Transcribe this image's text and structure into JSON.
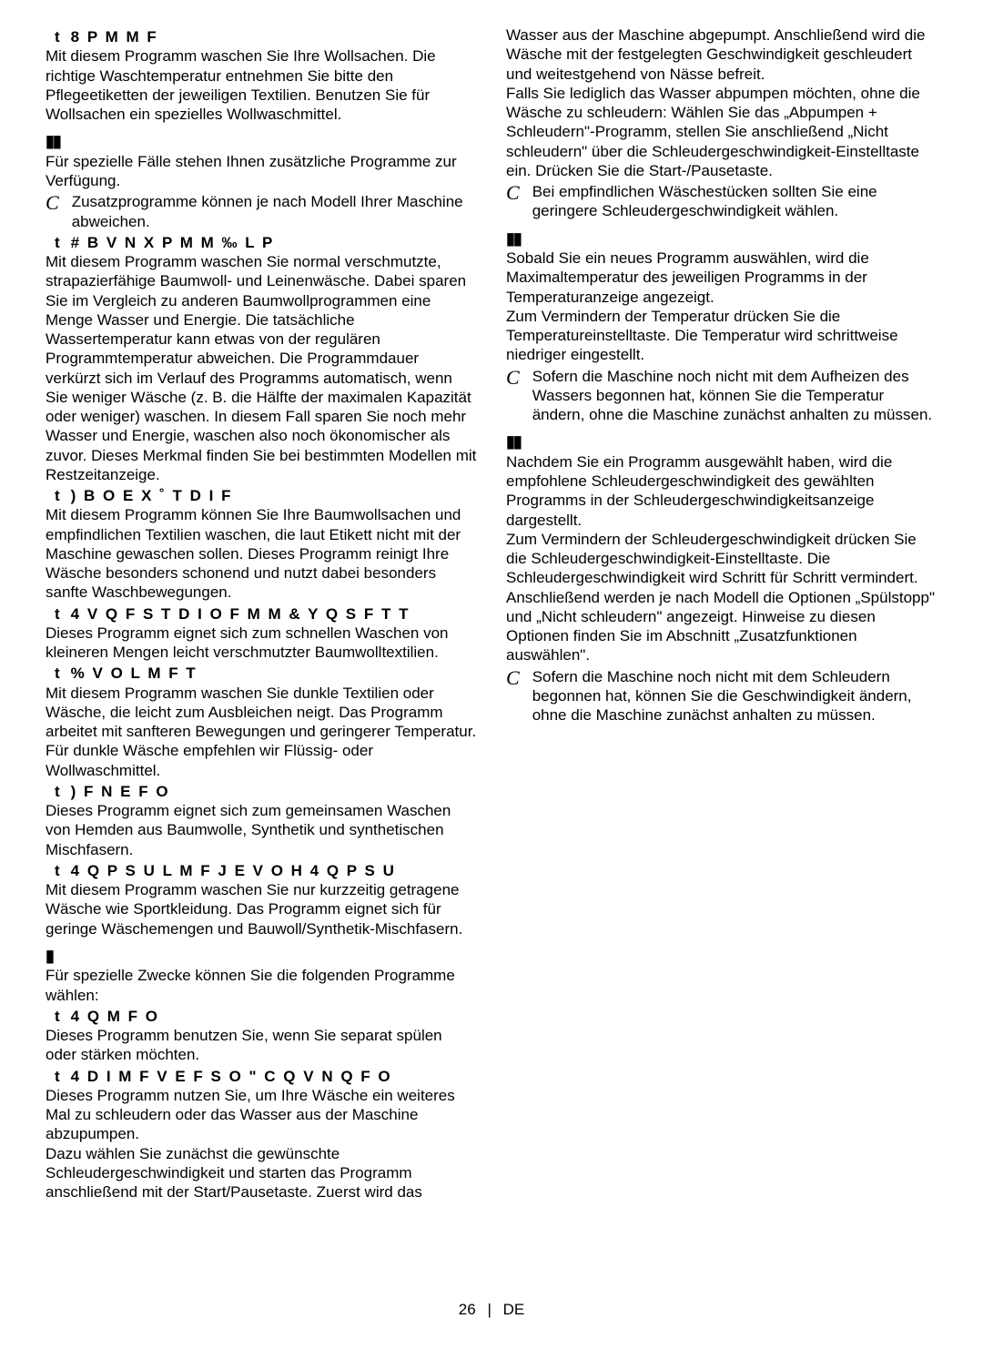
{
  "left": {
    "prog_wolle": {
      "bullet": "t",
      "header": "8 P M M F",
      "body": "Mit diesem Programm waschen Sie Ihre Wollsachen. Die richtige Waschtemperatur entnehmen Sie bitte den Pflegeetiketten der jeweiligen Textilien. Benutzen Sie für Wollsachen ein spezielles Wollwaschmittel."
    },
    "section1": {
      "marker": "▮▮",
      "intro": "Für spezielle Fälle stehen Ihnen zusätzliche Programme zur Verfügung.",
      "note": "Zusatzprogramme können je nach Modell Ihrer Maschine abweichen."
    },
    "prog_baumwoll": {
      "bullet": "t",
      "header": "# B V N X P M M  ‰ L P",
      "body": "Mit diesem Programm waschen Sie normal verschmutzte, strapazierfähige Baumwoll- und Leinenwäsche. Dabei sparen Sie im Vergleich zu anderen Baumwollprogrammen eine Menge Wasser und Energie. Die tatsächliche Wassertemperatur kann etwas von der regulären Programmtemperatur abweichen. Die Programmdauer verkürzt sich im Verlauf des Programms automatisch, wenn Sie weniger Wäsche (z. B. die Hälfte der maximalen Kapazität oder weniger) waschen. In diesem Fall sparen Sie noch mehr Wasser und Energie, waschen also noch ökonomischer als zuvor. Dieses Merkmal finden Sie bei bestimmten Modellen mit Restzeitanzeige."
    },
    "prog_hand": {
      "bullet": "t",
      "header": ") B O E X ˚ T D I F",
      "body": "Mit diesem Programm können Sie Ihre Baumwollsachen und empfindlichen Textilien waschen, die laut Etikett nicht mit der Maschine gewaschen sollen. Dieses Programm reinigt Ihre Wäsche besonders schonend und nutzt dabei besonders sanfte Waschbewegungen."
    },
    "prog_schnell": {
      "bullet": "t",
      "header": "4 V Q F S T D I O F M M  & Y Q S F T T",
      "body": "Dieses Programm eignet sich zum schnellen Waschen von kleineren Mengen leicht verschmutzter Baumwolltextilien."
    },
    "prog_volmft": {
      "bullet": "t",
      "header": "% V O L M F T",
      "body": "Mit diesem Programm waschen Sie dunkle Textilien oder Wäsche, die leicht zum Ausbleichen neigt. Das Programm arbeitet mit sanfteren Bewegungen und geringerer Temperatur. Für dunkle Wäsche empfehlen wir Flüssig- oder Wollwaschmittel."
    },
    "prog_fnefo": {
      "bullet": "t",
      "header": ") F N E F O",
      "body": "Dieses Programm eignet sich zum gemeinsamen Waschen von Hemden aus Baumwolle, Synthetik und synthetischen Mischfasern."
    },
    "prog_sport": {
      "bullet": "t",
      "header": "4 Q P S U L M F J E V O H     4 Q P S U",
      "body": "Mit diesem Programm waschen Sie nur kurzzeitig getragene Wäsche wie Sportkleidung. Das Programm eignet sich für geringe Wäschemengen und Bauwoll/Synthetik-Mischfasern."
    },
    "section2": {
      "marker": "▮",
      "intro": "Für spezielle Zwecke können Sie die folgenden Programme wählen:"
    },
    "prog_4qmfo": {
      "bullet": "t",
      "header": "4 Q  M F O",
      "body": "Dieses Programm benutzen Sie, wenn Sie separat spülen oder stärken möchten."
    },
    "prog_4dimf": {
      "bullet": "t",
      "header": "4 D I M F V E F S O    \" C Q V N Q F O",
      "body": "Dieses Programm nutzen Sie, um Ihre Wäsche ein weiteres Mal zu schleudern oder das Wasser aus der Maschine abzupumpen.",
      "body2": "Dazu wählen Sie zunächst die gewünschte Schleudergeschwindigkeit und starten das Programm anschließend mit der Start/Pausetaste. Zuerst wird das"
    }
  },
  "right": {
    "continuation": {
      "body1": "Wasser aus der Maschine abgepumpt. Anschließend wird die Wäsche mit der festgelegten Geschwindigkeit geschleudert und weitestgehend von Nässe befreit.",
      "body2": "Falls Sie lediglich das Wasser abpumpen möchten, ohne die Wäsche zu schleudern: Wählen Sie das „Abpumpen + Schleudern\"-Programm, stellen Sie anschließend „Nicht schleudern\" über die Schleudergeschwindigkeit-Einstelltaste ein. Drücken Sie die Start-/Pausetaste.",
      "note": "Bei empfindlichen Wäschestücken sollten Sie eine geringere Schleudergeschwindigkeit wählen."
    },
    "section3": {
      "marker": "▮▮",
      "body1": "Sobald Sie ein neues Programm auswählen, wird die Maximaltemperatur des jeweiligen Programms in der Temperaturanzeige angezeigt.",
      "body2": "Zum Vermindern der Temperatur drücken Sie die Temperatureinstelltaste. Die Temperatur wird schrittweise niedriger eingestellt.",
      "note": "Sofern die Maschine noch nicht mit dem Aufheizen des Wassers begonnen hat, können Sie die Temperatur ändern, ohne die Maschine zunächst anhalten zu müssen."
    },
    "section4": {
      "marker": "▮▮",
      "body1": "Nachdem Sie ein Programm ausgewählt haben, wird die empfohlene Schleudergeschwindigkeit des gewählten Programms in der Schleudergeschwindigkeitsanzeige dargestellt.",
      "body2": "Zum Vermindern der Schleudergeschwindigkeit drücken Sie die Schleudergeschwindigkeit-Einstelltaste. Die Schleudergeschwindigkeit wird Schritt für Schritt vermindert. Anschließend werden je nach Modell die Optionen „Spülstopp\" und „Nicht schleudern\" angezeigt. Hinweise zu diesen Optionen finden Sie im Abschnitt „Zusatzfunktionen auswählen\".",
      "note": "Sofern die Maschine noch nicht mit dem Schleudern begonnen hat, können Sie die Geschwindigkeit ändern, ohne die Maschine zunächst anhalten zu müssen."
    }
  },
  "footer": {
    "page": "26",
    "sep": "|",
    "lang": "DE"
  }
}
